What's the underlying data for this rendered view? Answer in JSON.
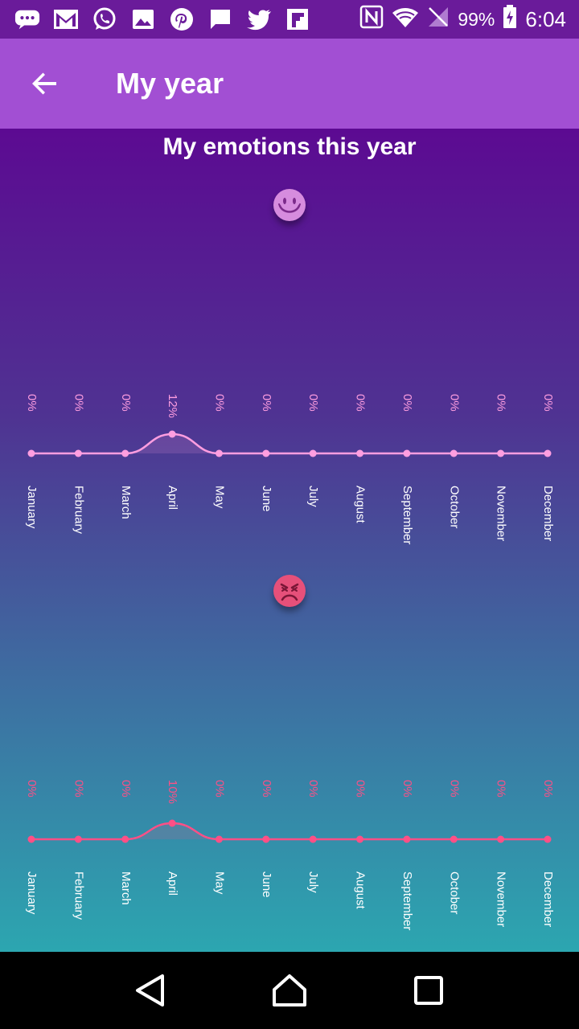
{
  "status_bar": {
    "notification_icons": [
      "messages-icon",
      "gmail-icon",
      "whatsapp-icon",
      "gallery-icon",
      "pinterest-icon",
      "message-square-icon",
      "twitter-icon",
      "flipboard-icon"
    ],
    "system_icons": [
      "nfc-icon",
      "wifi-icon",
      "no-signal-icon"
    ],
    "battery": "99%",
    "time": "6:04"
  },
  "app_bar": {
    "title": "My year"
  },
  "main": {
    "title": "My emotions this year"
  },
  "chart_data": [
    {
      "type": "line",
      "emotion": "happy",
      "emoji_icon": "happy-face-icon",
      "color": "#ff9ee0",
      "categories": [
        "January",
        "February",
        "March",
        "April",
        "May",
        "June",
        "July",
        "August",
        "September",
        "October",
        "November",
        "December"
      ],
      "values": [
        0,
        0,
        0,
        12,
        0,
        0,
        0,
        0,
        0,
        0,
        0,
        0
      ],
      "value_labels": [
        "0%",
        "0%",
        "0%",
        "12%",
        "0%",
        "0%",
        "0%",
        "0%",
        "0%",
        "0%",
        "0%",
        "0%"
      ]
    },
    {
      "type": "line",
      "emotion": "angry",
      "emoji_icon": "angry-face-icon",
      "color": "#ff4f86",
      "categories": [
        "January",
        "February",
        "March",
        "April",
        "May",
        "June",
        "July",
        "August",
        "September",
        "October",
        "November",
        "December"
      ],
      "values": [
        0,
        0,
        0,
        10,
        0,
        0,
        0,
        0,
        0,
        0,
        0,
        0
      ],
      "value_labels": [
        "0%",
        "0%",
        "0%",
        "10%",
        "0%",
        "0%",
        "0%",
        "0%",
        "0%",
        "0%",
        "0%",
        "0%"
      ]
    }
  ]
}
